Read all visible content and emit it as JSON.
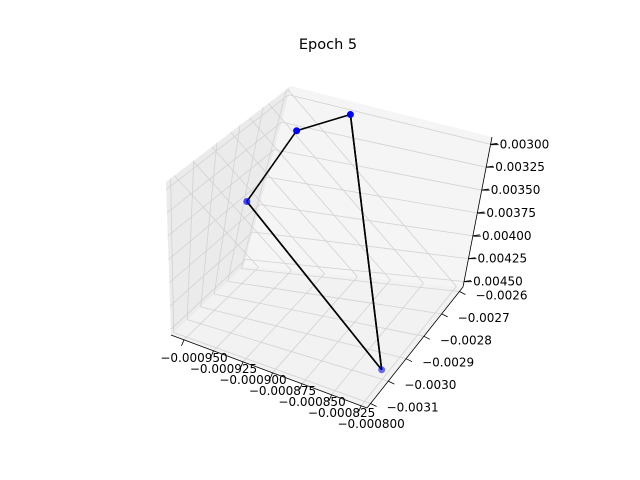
{
  "chart_data": {
    "type": "scatter",
    "projection": "3d",
    "title": "Epoch 5",
    "xlabel": "",
    "ylabel": "",
    "zlabel": "",
    "grid": true,
    "axes": {
      "x": {
        "ticks": [
          -0.00095,
          -0.000925,
          -0.0009,
          -0.000875,
          -0.00085,
          -0.000825,
          -0.0008
        ],
        "tick_labels": [
          "−0.000950",
          "−0.000925",
          "−0.000900",
          "−0.000875",
          "−0.000850",
          "−0.000825",
          "−0.000800"
        ]
      },
      "y": {
        "ticks": [
          -0.0026,
          -0.0027,
          -0.0028,
          -0.0029,
          -0.003,
          -0.0031
        ],
        "tick_labels": [
          "−0.0026",
          "−0.0027",
          "−0.0028",
          "−0.0029",
          "−0.0030",
          "−0.0031"
        ]
      },
      "z": {
        "ticks": [
          -0.003,
          -0.00325,
          -0.0035,
          -0.00375,
          -0.004,
          -0.00425,
          -0.0045
        ],
        "tick_labels": [
          "−0.00300",
          "−0.00325",
          "−0.00350",
          "−0.00375",
          "−0.00400",
          "−0.00425",
          "−0.00450"
        ]
      }
    },
    "point_color": "#0000ff",
    "line_color": "#000000",
    "points": [
      {
        "x": -0.000905,
        "y": -0.00263,
        "z": -0.00308
      },
      {
        "x": -0.000945,
        "y": -0.00263,
        "z": -0.00345
      },
      {
        "x": -0.000948,
        "y": -0.00287,
        "z": -0.00365
      },
      {
        "x": -0.000802,
        "y": -0.003,
        "z": -0.00447
      }
    ],
    "edges": [
      [
        0,
        1
      ],
      [
        1,
        2
      ],
      [
        0,
        3
      ],
      [
        2,
        3
      ],
      [
        0,
        3
      ],
      [
        2,
        3
      ]
    ]
  }
}
